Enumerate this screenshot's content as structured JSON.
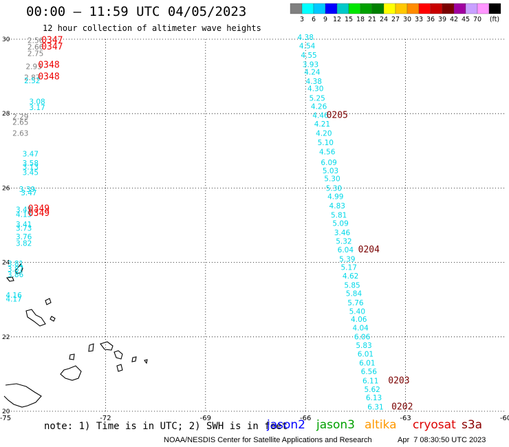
{
  "header": {
    "title": "00:00 – 11:59 UTC 04/05/2023",
    "subtitle": "12 hour collection of altimeter wave heights"
  },
  "legend": {
    "labels": [
      "3",
      "6",
      "9",
      "12",
      "15",
      "18",
      "21",
      "24",
      "27",
      "30",
      "33",
      "36",
      "39",
      "42",
      "45",
      "70"
    ],
    "unit": "(ft)",
    "colors": [
      "#808080",
      "#00ffff",
      "#00c8ff",
      "#0000ff",
      "#00c8c8",
      "#00e600",
      "#00a000",
      "#008000",
      "#ffff00",
      "#ffc800",
      "#ff8c00",
      "#ff0000",
      "#c80000",
      "#7a0000",
      "#a000a0",
      "#c8a0ff",
      "#ff96ff",
      "#000000"
    ]
  },
  "footer": {
    "note": "note: 1) Time is in UTC; 2) SWH is in feet",
    "credit": "NOAA/NESDIS Center for Satellite Applications and Research",
    "stamp": "Apr  7 08:30:50 UTC 2023",
    "satellites": [
      {
        "name": "jason2",
        "color": "#0000ff"
      },
      {
        "name": "jason3",
        "color": "#00a000"
      },
      {
        "name": "altika",
        "color": "#ff9900"
      },
      {
        "name": "cryosat",
        "color": "#dd0000"
      },
      {
        "name": "s3a",
        "color": "#8b0000"
      }
    ]
  },
  "chart_data": {
    "type": "scatter",
    "xlim": [
      -75,
      -60
    ],
    "ylim": [
      20,
      30
    ],
    "x_ticks": [
      "-75",
      "-72",
      "-69",
      "-66",
      "-63",
      "-60"
    ],
    "y_ticks": [
      "30",
      "28",
      "26",
      "24",
      "22",
      "20"
    ],
    "grid": true,
    "series": [
      {
        "color": "#808080",
        "points": [
          {
            "lon": -74.1,
            "lat": 29.9,
            "label": "2.56"
          },
          {
            "lon": -74.1,
            "lat": 29.72,
            "label": "2.66"
          },
          {
            "lon": -74.1,
            "lat": 29.55,
            "label": "2.75"
          },
          {
            "lon": -74.15,
            "lat": 29.2,
            "label": "2.93"
          },
          {
            "lon": -74.2,
            "lat": 28.9,
            "label": "2.87"
          },
          {
            "lon": -74.55,
            "lat": 27.85,
            "label": "2.29"
          },
          {
            "lon": -74.55,
            "lat": 27.7,
            "label": "2.65"
          },
          {
            "lon": -74.55,
            "lat": 27.4,
            "label": "2.63"
          }
        ]
      },
      {
        "color": "#00d8e8",
        "points": [
          {
            "lon": -74.2,
            "lat": 28.82,
            "label": "2.52"
          },
          {
            "lon": -74.05,
            "lat": 28.25,
            "label": "3.08"
          },
          {
            "lon": -74.05,
            "lat": 28.1,
            "label": "3.17"
          },
          {
            "lon": -74.25,
            "lat": 26.85,
            "label": "3.47"
          },
          {
            "lon": -74.25,
            "lat": 26.6,
            "label": "3.58"
          },
          {
            "lon": -74.25,
            "lat": 26.5,
            "label": "3.13"
          },
          {
            "lon": -74.25,
            "lat": 26.35,
            "label": "3.45"
          },
          {
            "lon": -74.35,
            "lat": 25.9,
            "label": "3.39"
          },
          {
            "lon": -74.3,
            "lat": 25.8,
            "label": "3.47"
          },
          {
            "lon": -74.45,
            "lat": 25.35,
            "label": "3.45"
          },
          {
            "lon": -74.45,
            "lat": 25.22,
            "label": "4.15"
          },
          {
            "lon": -74.45,
            "lat": 24.95,
            "label": "3.41"
          },
          {
            "lon": -74.45,
            "lat": 24.85,
            "label": "3.73"
          },
          {
            "lon": -74.45,
            "lat": 24.62,
            "label": "3.76"
          },
          {
            "lon": -74.45,
            "lat": 24.45,
            "label": "3.82"
          },
          {
            "lon": -74.7,
            "lat": 23.9,
            "label": "3.81"
          },
          {
            "lon": -74.7,
            "lat": 23.75,
            "label": "3.87"
          },
          {
            "lon": -74.7,
            "lat": 23.6,
            "label": "3.86"
          },
          {
            "lon": -74.75,
            "lat": 23.05,
            "label": "4.16"
          },
          {
            "lon": -74.75,
            "lat": 22.95,
            "label": "4.17"
          },
          {
            "lon": -66.0,
            "lat": 29.98,
            "label": "4.38"
          },
          {
            "lon": -65.95,
            "lat": 29.75,
            "label": "4.54"
          },
          {
            "lon": -65.9,
            "lat": 29.5,
            "label": "4.55"
          },
          {
            "lon": -65.85,
            "lat": 29.25,
            "label": "3.93"
          },
          {
            "lon": -65.8,
            "lat": 29.05,
            "label": "4.24"
          },
          {
            "lon": -65.75,
            "lat": 28.8,
            "label": "4.38"
          },
          {
            "lon": -65.7,
            "lat": 28.6,
            "label": "4.30"
          },
          {
            "lon": -65.65,
            "lat": 28.35,
            "label": "5.25"
          },
          {
            "lon": -65.6,
            "lat": 28.12,
            "label": "4.26"
          },
          {
            "lon": -65.55,
            "lat": 27.88,
            "label": "4.46"
          },
          {
            "lon": -65.5,
            "lat": 27.65,
            "label": "4.21"
          },
          {
            "lon": -65.45,
            "lat": 27.4,
            "label": "4.20"
          },
          {
            "lon": -65.4,
            "lat": 27.15,
            "label": "5.10"
          },
          {
            "lon": -65.35,
            "lat": 26.9,
            "label": "4.56"
          },
          {
            "lon": -65.3,
            "lat": 26.62,
            "label": "6.09"
          },
          {
            "lon": -65.25,
            "lat": 26.4,
            "label": "5.03"
          },
          {
            "lon": -65.2,
            "lat": 26.18,
            "label": "5.30"
          },
          {
            "lon": -65.15,
            "lat": 25.92,
            "label": "5.30"
          },
          {
            "lon": -65.1,
            "lat": 25.7,
            "label": "4.99"
          },
          {
            "lon": -65.05,
            "lat": 25.45,
            "label": "4.83"
          },
          {
            "lon": -65.0,
            "lat": 25.2,
            "label": "5.81"
          },
          {
            "lon": -64.95,
            "lat": 24.98,
            "label": "5.09"
          },
          {
            "lon": -64.9,
            "lat": 24.73,
            "label": "3.46"
          },
          {
            "lon": -64.85,
            "lat": 24.5,
            "label": "5.32"
          },
          {
            "lon": -64.8,
            "lat": 24.27,
            "label": "6.04"
          },
          {
            "lon": -64.75,
            "lat": 24.02,
            "label": "5.39"
          },
          {
            "lon": -64.7,
            "lat": 23.8,
            "label": "5.17"
          },
          {
            "lon": -64.65,
            "lat": 23.57,
            "label": "4.62"
          },
          {
            "lon": -64.6,
            "lat": 23.32,
            "label": "5.85"
          },
          {
            "lon": -64.55,
            "lat": 23.1,
            "label": "5.84"
          },
          {
            "lon": -64.5,
            "lat": 22.85,
            "label": "5.76"
          },
          {
            "lon": -64.45,
            "lat": 22.62,
            "label": "5.40"
          },
          {
            "lon": -64.4,
            "lat": 22.4,
            "label": "4.06"
          },
          {
            "lon": -64.35,
            "lat": 22.17,
            "label": "4.04"
          },
          {
            "lon": -64.3,
            "lat": 21.93,
            "label": "6.06"
          },
          {
            "lon": -64.25,
            "lat": 21.7,
            "label": "5.83"
          },
          {
            "lon": -64.2,
            "lat": 21.47,
            "label": "6.01"
          },
          {
            "lon": -64.15,
            "lat": 21.23,
            "label": "6.01"
          },
          {
            "lon": -64.1,
            "lat": 21.0,
            "label": "6.56"
          },
          {
            "lon": -64.05,
            "lat": 20.75,
            "label": "6.11"
          },
          {
            "lon": -64.0,
            "lat": 20.52,
            "label": "5.62"
          },
          {
            "lon": -63.95,
            "lat": 20.3,
            "label": "6.13"
          },
          {
            "lon": -63.9,
            "lat": 20.05,
            "label": "6.31"
          }
        ]
      },
      {
        "color": "#ee0000",
        "points": [
          {
            "lon": -73.6,
            "lat": 29.9,
            "label": "0347"
          },
          {
            "lon": -73.6,
            "lat": 29.72,
            "label": "0347"
          },
          {
            "lon": -73.7,
            "lat": 29.23,
            "label": "0348"
          },
          {
            "lon": -73.7,
            "lat": 28.92,
            "label": "0348"
          },
          {
            "lon": -74.0,
            "lat": 25.37,
            "label": "0349"
          },
          {
            "lon": -74.0,
            "lat": 25.25,
            "label": "0349"
          }
        ]
      },
      {
        "color": "#7a0000",
        "points": [
          {
            "lon": -65.05,
            "lat": 27.88,
            "label": "0205"
          },
          {
            "lon": -64.1,
            "lat": 24.27,
            "label": "0204"
          },
          {
            "lon": -63.2,
            "lat": 20.75,
            "label": "0203"
          },
          {
            "lon": -63.1,
            "lat": 20.05,
            "label": "0202"
          }
        ]
      }
    ]
  }
}
